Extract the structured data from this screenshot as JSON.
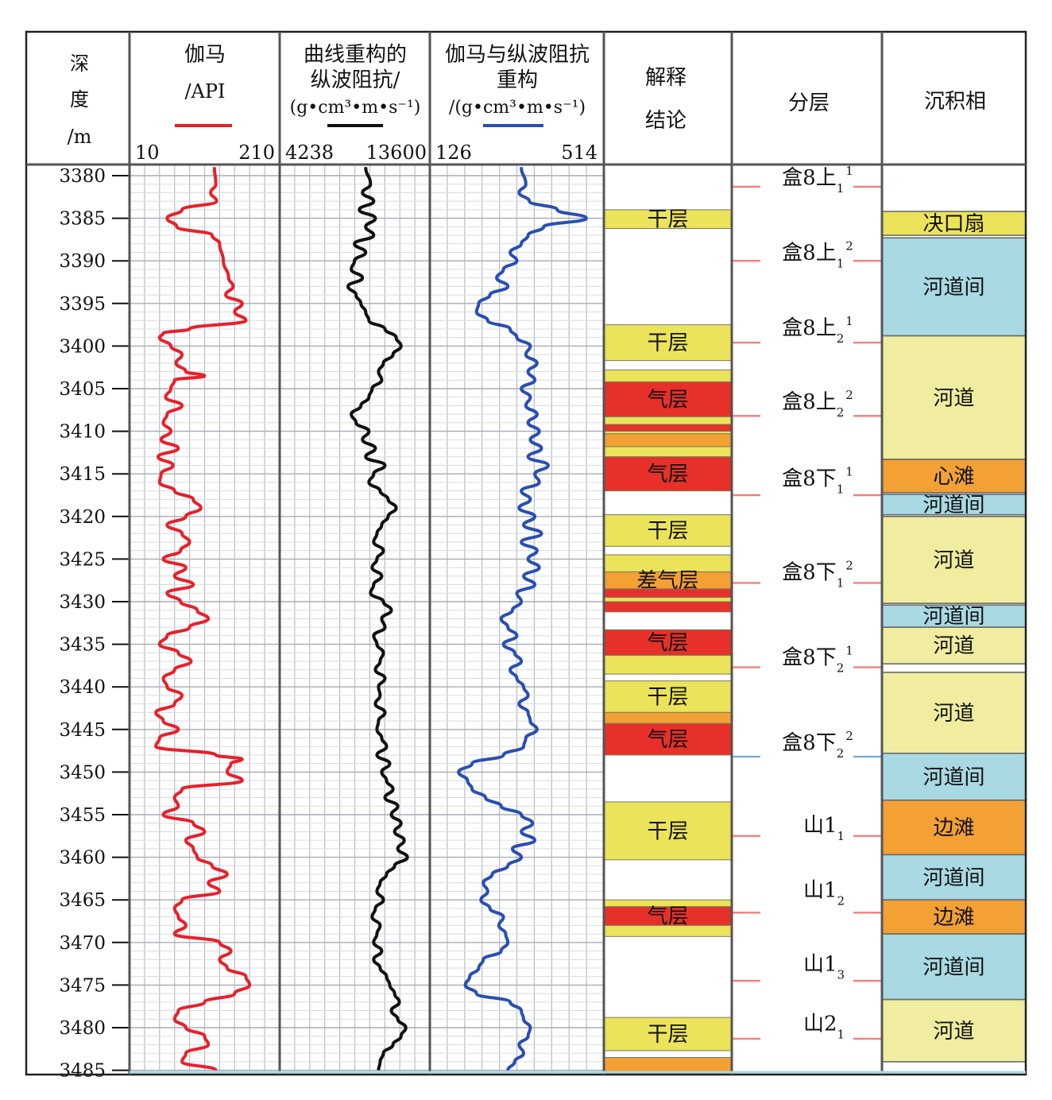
{
  "header": {
    "depth_label": [
      "深",
      "度",
      "/m"
    ],
    "gamma_title": "伽马",
    "gamma_unit": "/API",
    "gamma_scale": [
      "10",
      "210"
    ],
    "recon_title": [
      "曲线重构的",
      "纵波阻抗/",
      "(g•cm³•m•s⁻¹)"
    ],
    "recon_scale": [
      "4238",
      "13600"
    ],
    "gamma_recon_title": [
      "伽马与纵波阻抗",
      "重构",
      "/(g•cm³•m•s⁻¹)"
    ],
    "gamma_recon_scale": [
      "126",
      "514"
    ],
    "interp_title": [
      "解释",
      "结论"
    ],
    "layer_title": "分层",
    "facies_title": "沉积相"
  },
  "colors": {
    "gamma": "#e8202a",
    "recon": "#111111",
    "gamma_recon": "#2a4fb0",
    "dry": "#ebe35a",
    "gas": "#e8302a",
    "poor_gas": "#f3a035",
    "interchannel": "#a9d9e2",
    "channel": "#f0eca0",
    "crevasse": "#ebe35a",
    "bar": "#f3a035",
    "layer_tick": "#f08080",
    "layer_tick_blue": "#7aa7d8"
  },
  "chart_data": {
    "type": "line",
    "y_label": "深度/m",
    "depth_range": [
      3380,
      3485
    ],
    "depth_ticks": [
      3380,
      3385,
      3390,
      3395,
      3400,
      3405,
      3410,
      3415,
      3420,
      3425,
      3430,
      3435,
      3440,
      3445,
      3450,
      3455,
      3460,
      3465,
      3470,
      3475,
      3480,
      3485
    ],
    "series": [
      {
        "name": "伽马",
        "unit": "/API",
        "range": [
          10,
          210
        ],
        "depth": [
          3379,
          3381,
          3382,
          3383,
          3384,
          3385,
          3386,
          3387,
          3388,
          3390,
          3392,
          3393,
          3394,
          3395,
          3396,
          3397,
          3398,
          3398.5,
          3399,
          3400,
          3401,
          3402,
          3403,
          3403.5,
          3404,
          3405,
          3406,
          3407,
          3408,
          3409,
          3410,
          3411,
          3412,
          3413,
          3414,
          3415,
          3416,
          3417,
          3418,
          3419,
          3420,
          3421,
          3422,
          3423,
          3424,
          3425,
          3426,
          3427,
          3428,
          3429,
          3430,
          3431,
          3432,
          3433,
          3434,
          3435,
          3436,
          3437,
          3438,
          3439,
          3440,
          3441,
          3442,
          3443,
          3444,
          3445,
          3446,
          3447,
          3448,
          3448.5,
          3449,
          3450,
          3451,
          3452,
          3453,
          3454,
          3455,
          3456,
          3457,
          3458,
          3459,
          3460,
          3461,
          3462,
          3463,
          3464,
          3465,
          3466,
          3467,
          3468,
          3469,
          3470,
          3471,
          3472,
          3473,
          3474,
          3475,
          3476,
          3477,
          3478,
          3479,
          3480,
          3481,
          3482,
          3483,
          3484,
          3485
        ],
        "values": [
          123,
          125,
          118,
          126,
          80,
          60,
          73,
          120,
          130,
          135,
          142,
          148,
          138,
          160,
          150,
          165,
          90,
          55,
          50,
          65,
          80,
          72,
          85,
          110,
          70,
          65,
          58,
          80,
          60,
          55,
          65,
          52,
          75,
          48,
          68,
          52,
          50,
          70,
          95,
          105,
          85,
          60,
          80,
          90,
          78,
          55,
          85,
          70,
          95,
          60,
          78,
          100,
          115,
          90,
          60,
          50,
          75,
          92,
          70,
          55,
          60,
          80,
          70,
          45,
          55,
          75,
          50,
          45,
          125,
          160,
          145,
          140,
          160,
          80,
          70,
          75,
          55,
          95,
          110,
          85,
          95,
          100,
          120,
          140,
          115,
          130,
          80,
          70,
          75,
          85,
          70,
          130,
          145,
          130,
          140,
          165,
          170,
          150,
          110,
          75,
          70,
          85,
          110,
          115,
          85,
          80,
          125
        ],
        "color": "#e8202a"
      },
      {
        "name": "曲线重构的纵波阻抗",
        "unit": "(g•cm³•m•s⁻¹)",
        "range": [
          4238,
          13600
        ],
        "depth": [
          3379,
          3381,
          3382,
          3383,
          3384,
          3385,
          3386,
          3387,
          3388,
          3389,
          3390,
          3391,
          3392,
          3393,
          3394,
          3395,
          3396,
          3397,
          3398,
          3399,
          3400,
          3401,
          3402,
          3403,
          3404,
          3405,
          3406,
          3407,
          3408,
          3409,
          3410,
          3411,
          3412,
          3413,
          3414,
          3415,
          3416,
          3417,
          3418,
          3419,
          3420,
          3421,
          3422,
          3423,
          3424,
          3425,
          3426,
          3427,
          3428,
          3429,
          3430,
          3431,
          3432,
          3433,
          3434,
          3435,
          3436,
          3437,
          3438,
          3439,
          3440,
          3441,
          3442,
          3443,
          3444,
          3445,
          3446,
          3447,
          3448,
          3449,
          3450,
          3451,
          3452,
          3453,
          3454,
          3455,
          3456,
          3457,
          3458,
          3459,
          3460,
          3461,
          3462,
          3463,
          3464,
          3465,
          3466,
          3467,
          3468,
          3469,
          3470,
          3471,
          3472,
          3473,
          3474,
          3475,
          3476,
          3477,
          3478,
          3479,
          3480,
          3481,
          3482,
          3483,
          3484,
          3485
        ],
        "values": [
          9600,
          9900,
          9400,
          10100,
          9200,
          10200,
          9600,
          10100,
          8900,
          9600,
          8900,
          8700,
          9400,
          8500,
          9000,
          9300,
          9600,
          9800,
          10800,
          11500,
          11800,
          11300,
          10700,
          10400,
          10600,
          10000,
          9800,
          9300,
          8700,
          9000,
          9800,
          9400,
          10200,
          9600,
          10800,
          10100,
          9800,
          10500,
          11000,
          11500,
          11000,
          10600,
          10300,
          10100,
          10700,
          10300,
          10000,
          10600,
          10100,
          9900,
          10700,
          11200,
          10600,
          10800,
          10100,
          10300,
          10700,
          10500,
          10200,
          10800,
          10400,
          10500,
          10200,
          10800,
          10400,
          10300,
          10600,
          10900,
          10300,
          11100,
          10600,
          10900,
          11300,
          10800,
          11600,
          11200,
          11800,
          11400,
          12000,
          11600,
          12200,
          11400,
          10900,
          10500,
          10300,
          10700,
          10200,
          10000,
          10500,
          10300,
          10100,
          10600,
          10100,
          10500,
          10900,
          11100,
          11400,
          11700,
          11200,
          11600,
          12100,
          11800,
          11300,
          10700,
          10500,
          10400
        ],
        "color": "#111111"
      },
      {
        "name": "伽马与纵波阻抗重构",
        "unit": "/(g•cm³•m•s⁻¹)",
        "range": [
          126,
          514
        ],
        "depth": [
          3379,
          3381,
          3382,
          3383,
          3384,
          3385,
          3386,
          3387,
          3388,
          3389,
          3390,
          3391,
          3392,
          3393,
          3394,
          3395,
          3396,
          3397,
          3398,
          3399,
          3400,
          3401,
          3402,
          3403,
          3404,
          3405,
          3406,
          3407,
          3408,
          3409,
          3410,
          3411,
          3412,
          3413,
          3414,
          3415,
          3416,
          3417,
          3418,
          3419,
          3420,
          3421,
          3422,
          3423,
          3424,
          3425,
          3426,
          3427,
          3428,
          3429,
          3430,
          3431,
          3432,
          3433,
          3434,
          3435,
          3436,
          3437,
          3438,
          3439,
          3440,
          3441,
          3442,
          3443,
          3444,
          3445,
          3446,
          3447,
          3448,
          3449,
          3450,
          3451,
          3452,
          3453,
          3454,
          3455,
          3456,
          3457,
          3458,
          3459,
          3460,
          3461,
          3462,
          3463,
          3464,
          3465,
          3466,
          3467,
          3468,
          3469,
          3470,
          3471,
          3472,
          3473,
          3474,
          3475,
          3476,
          3477,
          3478,
          3479,
          3480,
          3481,
          3482,
          3483,
          3484,
          3485
        ],
        "values": [
          330,
          340,
          325,
          348,
          410,
          475,
          380,
          345,
          330,
          305,
          320,
          290,
          275,
          300,
          260,
          235,
          230,
          255,
          305,
          320,
          350,
          340,
          365,
          345,
          360,
          330,
          350,
          340,
          365,
          345,
          370,
          350,
          375,
          345,
          390,
          360,
          370,
          330,
          350,
          325,
          360,
          335,
          375,
          330,
          365,
          345,
          370,
          335,
          360,
          320,
          330,
          310,
          285,
          300,
          320,
          290,
          315,
          330,
          305,
          320,
          335,
          345,
          325,
          345,
          350,
          365,
          340,
          335,
          290,
          220,
          190,
          210,
          220,
          250,
          285,
          330,
          355,
          330,
          360,
          310,
          330,
          300,
          265,
          245,
          255,
          240,
          260,
          290,
          280,
          295,
          300,
          285,
          245,
          235,
          215,
          205,
          230,
          305,
          330,
          335,
          350,
          345,
          325,
          335,
          315,
          300
        ],
        "color": "#2a4fb0"
      }
    ],
    "interpretation": [
      {
        "top": 3384.0,
        "bottom": 3386.2,
        "kind": "dry",
        "label": "干层"
      },
      {
        "top": 3397.5,
        "bottom": 3401.7,
        "kind": "dry",
        "label": "干层"
      },
      {
        "top": 3402.8,
        "bottom": 3404.2,
        "kind": "dry",
        "label": ""
      },
      {
        "top": 3404.2,
        "bottom": 3408.3,
        "kind": "gas",
        "label": "气层"
      },
      {
        "top": 3408.3,
        "bottom": 3409.2,
        "kind": "dry",
        "label": ""
      },
      {
        "top": 3409.2,
        "bottom": 3410.0,
        "kind": "gas",
        "label": ""
      },
      {
        "top": 3410.0,
        "bottom": 3410.3,
        "kind": "dry",
        "label": ""
      },
      {
        "top": 3410.3,
        "bottom": 3411.8,
        "kind": "poor_gas",
        "label": ""
      },
      {
        "top": 3411.8,
        "bottom": 3413.0,
        "kind": "dry",
        "label": ""
      },
      {
        "top": 3413.0,
        "bottom": 3417.0,
        "kind": "gas",
        "label": "气层"
      },
      {
        "top": 3419.8,
        "bottom": 3423.5,
        "kind": "dry",
        "label": "干层"
      },
      {
        "top": 3424.5,
        "bottom": 3426.5,
        "kind": "dry",
        "label": ""
      },
      {
        "top": 3426.5,
        "bottom": 3428.5,
        "kind": "poor_gas",
        "label": "差气层"
      },
      {
        "top": 3428.5,
        "bottom": 3429.5,
        "kind": "gas",
        "label": ""
      },
      {
        "top": 3429.5,
        "bottom": 3430.0,
        "kind": "dry",
        "label": ""
      },
      {
        "top": 3430.0,
        "bottom": 3431.2,
        "kind": "gas",
        "label": ""
      },
      {
        "top": 3433.3,
        "bottom": 3436.3,
        "kind": "gas",
        "label": "气层"
      },
      {
        "top": 3436.3,
        "bottom": 3438.5,
        "kind": "dry",
        "label": ""
      },
      {
        "top": 3439.3,
        "bottom": 3443.0,
        "kind": "dry",
        "label": "干层"
      },
      {
        "top": 3443.0,
        "bottom": 3444.3,
        "kind": "poor_gas",
        "label": ""
      },
      {
        "top": 3444.3,
        "bottom": 3448.0,
        "kind": "gas",
        "label": "气层"
      },
      {
        "top": 3453.5,
        "bottom": 3460.3,
        "kind": "dry",
        "label": "干层"
      },
      {
        "top": 3465.0,
        "bottom": 3465.8,
        "kind": "dry",
        "label": ""
      },
      {
        "top": 3465.8,
        "bottom": 3468.0,
        "kind": "gas",
        "label": "气层"
      },
      {
        "top": 3468.0,
        "bottom": 3469.3,
        "kind": "dry",
        "label": ""
      },
      {
        "top": 3478.8,
        "bottom": 3482.7,
        "kind": "dry",
        "label": "干层"
      },
      {
        "top": 3483.5,
        "bottom": 3485.7,
        "kind": "poor_gas",
        "label": ""
      }
    ],
    "layers": [
      {
        "name": "盒8上",
        "sub": "1",
        "sup": "1",
        "boundary": 3381.3,
        "label_depth": 3380.2,
        "tick_color": "#f08080"
      },
      {
        "name": "盒8上",
        "sub": "1",
        "sup": "2",
        "boundary": 3390.0,
        "label_depth": 3389.0,
        "tick_color": "#f08080"
      },
      {
        "name": "盒8上",
        "sub": "2",
        "sup": "1",
        "boundary": 3399.6,
        "label_depth": 3397.8,
        "tick_color": "#f08080"
      },
      {
        "name": "盒8上",
        "sub": "2",
        "sup": "2",
        "boundary": 3408.2,
        "label_depth": 3406.5,
        "tick_color": "#f08080"
      },
      {
        "name": "盒8下",
        "sub": "1",
        "sup": "1",
        "boundary": 3417.5,
        "label_depth": 3415.5,
        "tick_color": "#f08080"
      },
      {
        "name": "盒8下",
        "sub": "1",
        "sup": "2",
        "boundary": 3427.8,
        "label_depth": 3426.5,
        "tick_color": "#f08080"
      },
      {
        "name": "盒8下",
        "sub": "2",
        "sup": "1",
        "boundary": 3437.7,
        "label_depth": 3436.5,
        "tick_color": "#f08080"
      },
      {
        "name": "盒8下",
        "sub": "2",
        "sup": "2",
        "boundary": 3448.2,
        "label_depth": 3446.5,
        "tick_color": "#7aa7d8"
      },
      {
        "name": "山1",
        "sub": "1",
        "sup": "",
        "boundary": 3457.5,
        "label_depth": 3456.2,
        "tick_color": "#f08080"
      },
      {
        "name": "山1",
        "sub": "2",
        "sup": "",
        "boundary": 3466.5,
        "label_depth": 3463.8,
        "tick_color": "#f08080"
      },
      {
        "name": "山1",
        "sub": "3",
        "sup": "",
        "boundary": 3474.5,
        "label_depth": 3472.5,
        "tick_color": "#f08080"
      },
      {
        "name": "山2",
        "sub": "1",
        "sup": "",
        "boundary": 3481.3,
        "label_depth": 3479.5,
        "tick_color": "#f08080"
      }
    ],
    "facies": [
      {
        "top": 3384.2,
        "bottom": 3387.0,
        "kind": "crevasse",
        "label": "决口扇"
      },
      {
        "top": 3387.3,
        "bottom": 3398.8,
        "kind": "interchannel",
        "label": "河道间"
      },
      {
        "top": 3398.8,
        "bottom": 3413.3,
        "kind": "channel",
        "label": "河道"
      },
      {
        "top": 3413.3,
        "bottom": 3417.2,
        "kind": "bar",
        "label": "心滩"
      },
      {
        "top": 3417.4,
        "bottom": 3419.8,
        "kind": "interchannel",
        "label": "河道间"
      },
      {
        "top": 3420.0,
        "bottom": 3430.2,
        "kind": "channel",
        "label": "河道"
      },
      {
        "top": 3430.4,
        "bottom": 3433.0,
        "kind": "interchannel",
        "label": "河道间"
      },
      {
        "top": 3433.0,
        "bottom": 3437.3,
        "kind": "channel",
        "label": "河道"
      },
      {
        "top": 3438.3,
        "bottom": 3447.8,
        "kind": "channel",
        "label": "河道"
      },
      {
        "top": 3447.8,
        "bottom": 3453.3,
        "kind": "interchannel",
        "label": "河道间"
      },
      {
        "top": 3453.3,
        "bottom": 3459.7,
        "kind": "bar",
        "label": "边滩"
      },
      {
        "top": 3459.7,
        "bottom": 3465.0,
        "kind": "interchannel",
        "label": "河道间"
      },
      {
        "top": 3465.0,
        "bottom": 3469.0,
        "kind": "bar",
        "label": "边滩"
      },
      {
        "top": 3469.0,
        "bottom": 3476.7,
        "kind": "interchannel",
        "label": "河道间"
      },
      {
        "top": 3476.7,
        "bottom": 3484.0,
        "kind": "channel",
        "label": "河道"
      }
    ]
  }
}
